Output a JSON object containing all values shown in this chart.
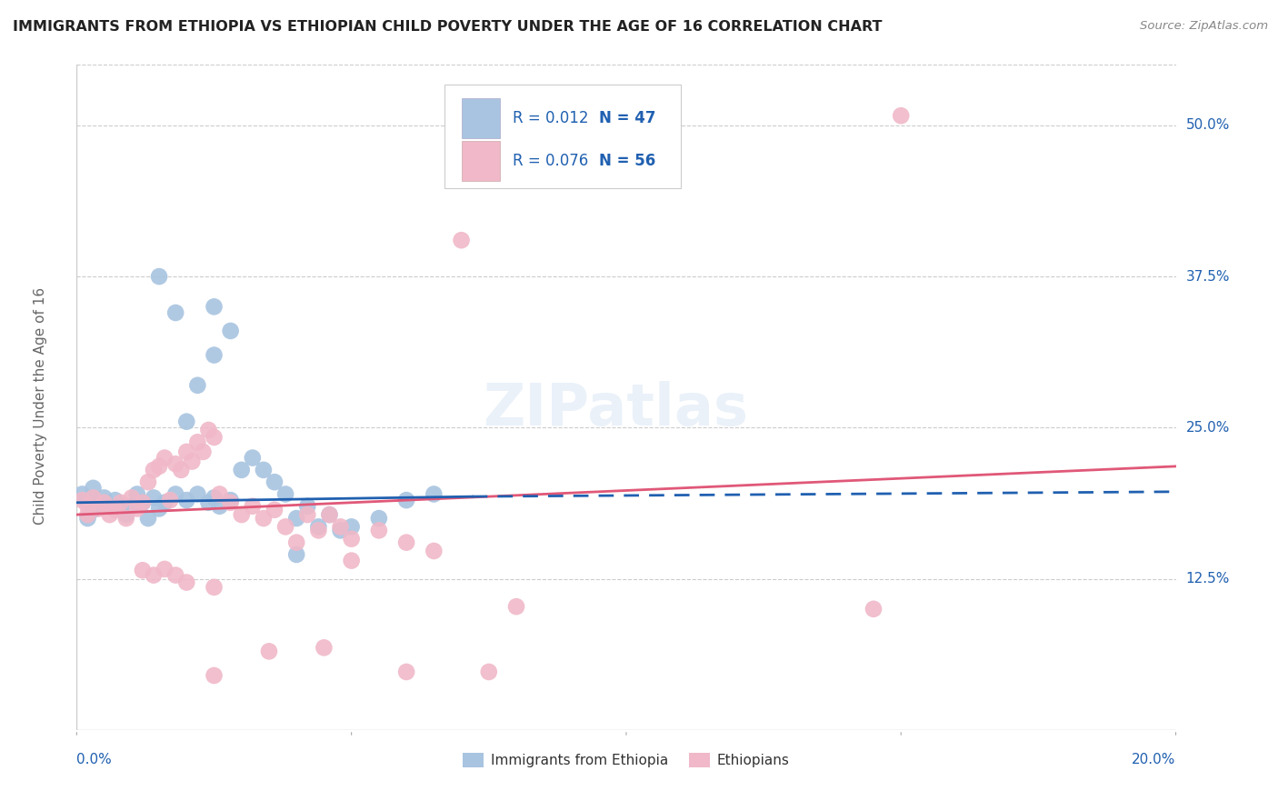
{
  "title": "IMMIGRANTS FROM ETHIOPIA VS ETHIOPIAN CHILD POVERTY UNDER THE AGE OF 16 CORRELATION CHART",
  "source": "Source: ZipAtlas.com",
  "ylabel": "Child Poverty Under the Age of 16",
  "xmin": 0.0,
  "xmax": 0.2,
  "ymin": 0.0,
  "ymax": 0.55,
  "yticks": [
    0.125,
    0.25,
    0.375,
    0.5
  ],
  "ytick_labels": [
    "12.5%",
    "25.0%",
    "37.5%",
    "50.0%"
  ],
  "legend_blue_r": "R = 0.012",
  "legend_blue_n": "N = 47",
  "legend_pink_r": "R = 0.076",
  "legend_pink_n": "N = 56",
  "legend_label_blue": "Immigrants from Ethiopia",
  "legend_label_pink": "Ethiopians",
  "blue_color": "#a8c4e0",
  "pink_color": "#f0b8c8",
  "blue_line_color": "#2060b0",
  "pink_line_color": "#e05878",
  "label_color": "#2060b0",
  "blue_dots": [
    [
      0.001,
      0.195
    ],
    [
      0.002,
      0.188
    ],
    [
      0.002,
      0.175
    ],
    [
      0.003,
      0.2
    ],
    [
      0.003,
      0.182
    ],
    [
      0.004,
      0.188
    ],
    [
      0.005,
      0.192
    ],
    [
      0.006,
      0.185
    ],
    [
      0.007,
      0.19
    ],
    [
      0.008,
      0.183
    ],
    [
      0.009,
      0.178
    ],
    [
      0.01,
      0.185
    ],
    [
      0.011,
      0.195
    ],
    [
      0.012,
      0.188
    ],
    [
      0.013,
      0.175
    ],
    [
      0.014,
      0.192
    ],
    [
      0.015,
      0.183
    ],
    [
      0.016,
      0.188
    ],
    [
      0.018,
      0.195
    ],
    [
      0.02,
      0.19
    ],
    [
      0.022,
      0.195
    ],
    [
      0.024,
      0.188
    ],
    [
      0.025,
      0.192
    ],
    [
      0.026,
      0.185
    ],
    [
      0.028,
      0.19
    ],
    [
      0.03,
      0.215
    ],
    [
      0.032,
      0.225
    ],
    [
      0.034,
      0.215
    ],
    [
      0.036,
      0.205
    ],
    [
      0.038,
      0.195
    ],
    [
      0.04,
      0.175
    ],
    [
      0.042,
      0.185
    ],
    [
      0.044,
      0.168
    ],
    [
      0.046,
      0.178
    ],
    [
      0.048,
      0.165
    ],
    [
      0.05,
      0.168
    ],
    [
      0.055,
      0.175
    ],
    [
      0.06,
      0.19
    ],
    [
      0.065,
      0.195
    ],
    [
      0.02,
      0.255
    ],
    [
      0.022,
      0.285
    ],
    [
      0.025,
      0.31
    ],
    [
      0.028,
      0.33
    ],
    [
      0.015,
      0.375
    ],
    [
      0.018,
      0.345
    ],
    [
      0.025,
      0.35
    ],
    [
      0.04,
      0.145
    ]
  ],
  "pink_dots": [
    [
      0.001,
      0.19
    ],
    [
      0.002,
      0.185
    ],
    [
      0.002,
      0.178
    ],
    [
      0.003,
      0.192
    ],
    [
      0.004,
      0.183
    ],
    [
      0.005,
      0.188
    ],
    [
      0.006,
      0.178
    ],
    [
      0.007,
      0.182
    ],
    [
      0.008,
      0.188
    ],
    [
      0.009,
      0.175
    ],
    [
      0.01,
      0.192
    ],
    [
      0.011,
      0.183
    ],
    [
      0.012,
      0.188
    ],
    [
      0.013,
      0.205
    ],
    [
      0.014,
      0.215
    ],
    [
      0.015,
      0.218
    ],
    [
      0.016,
      0.225
    ],
    [
      0.017,
      0.19
    ],
    [
      0.018,
      0.22
    ],
    [
      0.019,
      0.215
    ],
    [
      0.02,
      0.23
    ],
    [
      0.021,
      0.222
    ],
    [
      0.022,
      0.238
    ],
    [
      0.023,
      0.23
    ],
    [
      0.024,
      0.248
    ],
    [
      0.025,
      0.242
    ],
    [
      0.026,
      0.195
    ],
    [
      0.028,
      0.188
    ],
    [
      0.03,
      0.178
    ],
    [
      0.032,
      0.185
    ],
    [
      0.034,
      0.175
    ],
    [
      0.036,
      0.182
    ],
    [
      0.038,
      0.168
    ],
    [
      0.04,
      0.155
    ],
    [
      0.042,
      0.178
    ],
    [
      0.044,
      0.165
    ],
    [
      0.046,
      0.178
    ],
    [
      0.048,
      0.168
    ],
    [
      0.05,
      0.158
    ],
    [
      0.055,
      0.165
    ],
    [
      0.06,
      0.155
    ],
    [
      0.065,
      0.148
    ],
    [
      0.012,
      0.132
    ],
    [
      0.014,
      0.128
    ],
    [
      0.016,
      0.133
    ],
    [
      0.018,
      0.128
    ],
    [
      0.02,
      0.122
    ],
    [
      0.025,
      0.118
    ],
    [
      0.025,
      0.045
    ],
    [
      0.035,
      0.065
    ],
    [
      0.05,
      0.14
    ],
    [
      0.045,
      0.068
    ],
    [
      0.06,
      0.048
    ],
    [
      0.075,
      0.048
    ],
    [
      0.08,
      0.102
    ],
    [
      0.145,
      0.1
    ],
    [
      0.15,
      0.508
    ],
    [
      0.07,
      0.405
    ]
  ],
  "blue_trend": [
    0.0,
    0.188,
    0.072,
    0.193,
    0.2,
    0.197
  ],
  "pink_trend": [
    0.0,
    0.178,
    0.2,
    0.218
  ],
  "background_color": "#ffffff",
  "grid_color": "#cccccc"
}
